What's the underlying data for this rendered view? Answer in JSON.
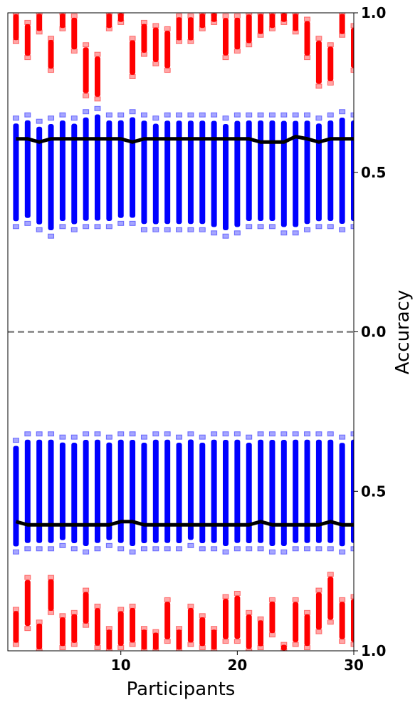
{
  "chart_data": {
    "type": "scatter",
    "xlabel": "Participants",
    "ylabel": "Accuracy",
    "xlim": [
      0.3,
      30
    ],
    "x_ticks": [
      10,
      20,
      30
    ],
    "y_ticks": [
      {
        "value": 1.0,
        "label": "1.0"
      },
      {
        "value": 0.5,
        "label": "0.5"
      },
      {
        "value": 0.0,
        "label": "0.0"
      },
      {
        "value": -0.5,
        "label": "0.5"
      },
      {
        "value": -1.0,
        "label": "1.0"
      }
    ],
    "ylim": [
      -1.0,
      1.0
    ],
    "reference_line": {
      "y": 0.0,
      "style": "dashed",
      "color": "#808080"
    },
    "colors": {
      "red": "#ff0000",
      "blue": "#0000ff",
      "mean": "#000000"
    },
    "participants": [
      1,
      2,
      3,
      4,
      5,
      6,
      7,
      8,
      9,
      10,
      11,
      12,
      13,
      14,
      15,
      16,
      17,
      18,
      19,
      20,
      21,
      22,
      23,
      24,
      25,
      26,
      27,
      28,
      29,
      30
    ],
    "series": [
      {
        "color": "red",
        "ranges": [
          [
            0.91,
            1.0
          ],
          [
            0.86,
            0.97
          ],
          [
            0.94,
            1.0
          ],
          [
            0.82,
            0.92
          ],
          [
            0.95,
            1.0
          ],
          [
            0.88,
            0.99
          ],
          [
            0.74,
            0.9
          ],
          [
            0.73,
            0.87
          ],
          [
            0.95,
            1.0
          ],
          [
            0.97,
            1.0
          ],
          [
            0.8,
            0.92
          ],
          [
            0.87,
            0.97
          ],
          [
            0.84,
            0.96
          ],
          [
            0.82,
            0.95
          ],
          [
            0.91,
            0.99
          ],
          [
            0.91,
            0.99
          ],
          [
            0.95,
            1.0
          ],
          [
            0.97,
            1.0
          ],
          [
            0.86,
            0.99
          ],
          [
            0.88,
            0.99
          ],
          [
            0.9,
            1.0
          ],
          [
            0.93,
            1.0
          ],
          [
            0.95,
            1.0
          ],
          [
            0.97,
            1.0
          ],
          [
            0.94,
            1.0
          ],
          [
            0.86,
            0.98
          ],
          [
            0.77,
            0.92
          ],
          [
            0.78,
            0.9
          ],
          [
            0.93,
            1.0
          ],
          [
            0.82,
            0.96
          ]
        ]
      },
      {
        "color": "blue",
        "ranges": [
          [
            0.33,
            0.67
          ],
          [
            0.34,
            0.68
          ],
          [
            0.32,
            0.66
          ],
          [
            0.3,
            0.67
          ],
          [
            0.33,
            0.68
          ],
          [
            0.32,
            0.67
          ],
          [
            0.33,
            0.69
          ],
          [
            0.33,
            0.7
          ],
          [
            0.33,
            0.68
          ],
          [
            0.34,
            0.68
          ],
          [
            0.34,
            0.69
          ],
          [
            0.32,
            0.68
          ],
          [
            0.32,
            0.67
          ],
          [
            0.32,
            0.68
          ],
          [
            0.32,
            0.68
          ],
          [
            0.32,
            0.68
          ],
          [
            0.32,
            0.68
          ],
          [
            0.31,
            0.68
          ],
          [
            0.3,
            0.67
          ],
          [
            0.31,
            0.68
          ],
          [
            0.33,
            0.68
          ],
          [
            0.33,
            0.68
          ],
          [
            0.33,
            0.68
          ],
          [
            0.31,
            0.68
          ],
          [
            0.31,
            0.68
          ],
          [
            0.32,
            0.68
          ],
          [
            0.33,
            0.67
          ],
          [
            0.33,
            0.68
          ],
          [
            0.32,
            0.69
          ],
          [
            0.33,
            0.68
          ]
        ]
      },
      {
        "color": "blue",
        "ranges": [
          [
            -0.69,
            -0.34
          ],
          [
            -0.68,
            -0.32
          ],
          [
            -0.68,
            -0.32
          ],
          [
            -0.68,
            -0.32
          ],
          [
            -0.67,
            -0.33
          ],
          [
            -0.68,
            -0.33
          ],
          [
            -0.69,
            -0.32
          ],
          [
            -0.68,
            -0.32
          ],
          [
            -0.67,
            -0.33
          ],
          [
            -0.68,
            -0.32
          ],
          [
            -0.69,
            -0.32
          ],
          [
            -0.68,
            -0.33
          ],
          [
            -0.68,
            -0.32
          ],
          [
            -0.68,
            -0.32
          ],
          [
            -0.68,
            -0.33
          ],
          [
            -0.67,
            -0.32
          ],
          [
            -0.68,
            -0.33
          ],
          [
            -0.68,
            -0.32
          ],
          [
            -0.69,
            -0.32
          ],
          [
            -0.68,
            -0.32
          ],
          [
            -0.68,
            -0.33
          ],
          [
            -0.68,
            -0.32
          ],
          [
            -0.69,
            -0.32
          ],
          [
            -0.69,
            -0.32
          ],
          [
            -0.68,
            -0.32
          ],
          [
            -0.68,
            -0.32
          ],
          [
            -0.68,
            -0.32
          ],
          [
            -0.68,
            -0.32
          ],
          [
            -0.69,
            -0.33
          ],
          [
            -0.68,
            -0.32
          ]
        ]
      },
      {
        "color": "red",
        "ranges": [
          [
            -0.98,
            -0.87
          ],
          [
            -0.93,
            -0.77
          ],
          [
            -1.0,
            -0.91
          ],
          [
            -0.88,
            -0.77
          ],
          [
            -0.99,
            -0.89
          ],
          [
            -0.98,
            -0.88
          ],
          [
            -0.92,
            -0.81
          ],
          [
            -0.99,
            -0.86
          ],
          [
            -1.0,
            -0.93
          ],
          [
            -0.99,
            -0.87
          ],
          [
            -0.98,
            -0.86
          ],
          [
            -1.0,
            -0.93
          ],
          [
            -1.0,
            -0.94
          ],
          [
            -0.97,
            -0.84
          ],
          [
            -1.0,
            -0.93
          ],
          [
            -0.98,
            -0.86
          ],
          [
            -0.99,
            -0.89
          ],
          [
            -1.0,
            -0.93
          ],
          [
            -0.97,
            -0.83
          ],
          [
            -0.97,
            -0.82
          ],
          [
            -1.0,
            -0.88
          ],
          [
            -0.99,
            -0.9
          ],
          [
            -0.95,
            -0.84
          ],
          [
            -1.0,
            -0.98
          ],
          [
            -0.98,
            -0.84
          ],
          [
            -0.99,
            -0.88
          ],
          [
            -0.94,
            -0.81
          ],
          [
            -0.91,
            -0.76
          ],
          [
            -0.97,
            -0.84
          ],
          [
            -0.98,
            -0.83
          ]
        ]
      }
    ],
    "mean_upper": [
      0.605,
      0.605,
      0.595,
      0.605,
      0.605,
      0.605,
      0.605,
      0.605,
      0.605,
      0.605,
      0.595,
      0.605,
      0.605,
      0.605,
      0.605,
      0.605,
      0.605,
      0.605,
      0.605,
      0.605,
      0.605,
      0.595,
      0.595,
      0.595,
      0.612,
      0.605,
      0.595,
      0.605,
      0.605,
      0.605
    ],
    "mean_lower": [
      -0.595,
      -0.605,
      -0.605,
      -0.605,
      -0.605,
      -0.605,
      -0.605,
      -0.605,
      -0.605,
      -0.595,
      -0.595,
      -0.605,
      -0.605,
      -0.605,
      -0.605,
      -0.605,
      -0.605,
      -0.605,
      -0.605,
      -0.605,
      -0.605,
      -0.595,
      -0.605,
      -0.605,
      -0.605,
      -0.605,
      -0.605,
      -0.595,
      -0.605,
      -0.605
    ]
  }
}
